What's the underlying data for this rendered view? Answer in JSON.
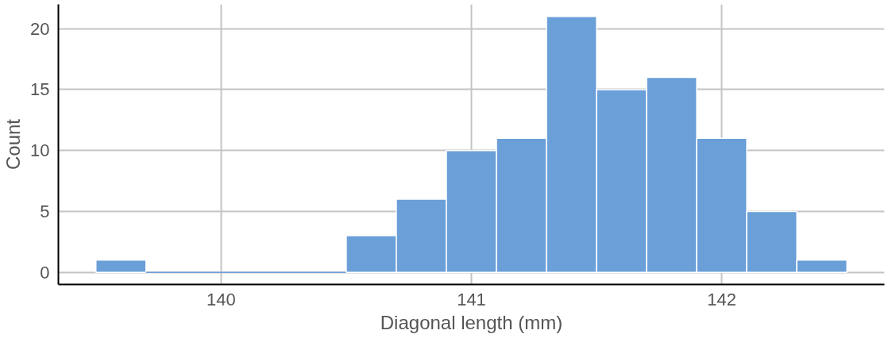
{
  "chart_data": {
    "type": "histogram",
    "xlabel": "Diagonal length (mm)",
    "ylabel": "Count",
    "bins": [
      139.5,
      139.7,
      139.9,
      140.1,
      140.3,
      140.5,
      140.7,
      140.9,
      141.1,
      141.3,
      141.5,
      141.7,
      141.9,
      142.1,
      142.3,
      142.5
    ],
    "values": [
      1,
      0,
      0,
      0,
      0,
      3,
      6,
      10,
      11,
      21,
      15,
      16,
      11,
      5,
      1
    ],
    "color": "#6a9fd8",
    "xlim": [
      139.35,
      142.65
    ],
    "ylim": [
      -1,
      22
    ],
    "xticks": [
      140,
      141,
      142
    ],
    "yticks": [
      0,
      5,
      10,
      15,
      20
    ],
    "grid": true
  }
}
